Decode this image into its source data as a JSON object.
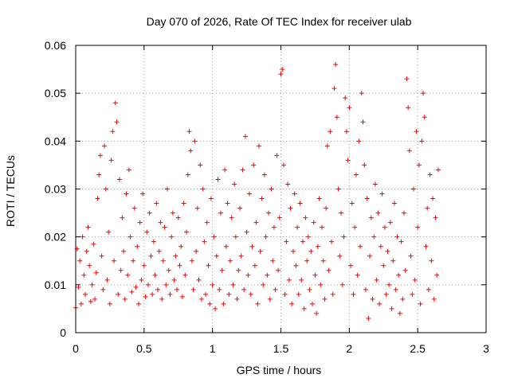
{
  "chart_data": {
    "type": "scatter",
    "title": "Day 070 of 2026, Rate Of TEC Index for receiver ulab",
    "xlabel": "GPS time / hours",
    "ylabel": "ROTI / TECUs",
    "xlim": [
      0,
      3
    ],
    "ylim": [
      0,
      0.06
    ],
    "xticks": [
      0,
      0.5,
      1,
      1.5,
      2,
      2.5,
      3
    ],
    "xtick_labels": [
      "0",
      "0.5",
      "1",
      "1.5",
      "2",
      "2.5",
      "3"
    ],
    "yticks": [
      0,
      0.01,
      0.02,
      0.03,
      0.04,
      0.05,
      0.06
    ],
    "ytick_labels": [
      "0",
      "0.01",
      "0.02",
      "0.03",
      "0.04",
      "0.05",
      "0.06"
    ],
    "grid": true,
    "marker": "plus",
    "marker_color": "#ff0000",
    "series": [
      {
        "points": [
          [
            0.0,
            0.0052
          ],
          [
            0.01,
            0.0175
          ],
          [
            0.02,
            0.0095
          ],
          [
            0.03,
            0.015
          ],
          [
            0.04,
            0.006
          ],
          [
            0.05,
            0.02
          ],
          [
            0.06,
            0.012
          ],
          [
            0.07,
            0.008
          ],
          [
            0.08,
            0.017
          ],
          [
            0.09,
            0.022
          ],
          [
            0.1,
            0.014
          ],
          [
            0.11,
            0.0065
          ],
          [
            0.12,
            0.01
          ],
          [
            0.13,
            0.0185
          ],
          [
            0.14,
            0.007
          ],
          [
            0.15,
            0.0125
          ],
          [
            0.16,
            0.028
          ],
          [
            0.17,
            0.033
          ],
          [
            0.18,
            0.037
          ],
          [
            0.19,
            0.016
          ],
          [
            0.2,
            0.009
          ],
          [
            0.21,
            0.039
          ],
          [
            0.22,
            0.03
          ],
          [
            0.23,
            0.011
          ],
          [
            0.24,
            0.021
          ],
          [
            0.25,
            0.006
          ],
          [
            0.26,
            0.036
          ],
          [
            0.27,
            0.042
          ],
          [
            0.28,
            0.015
          ],
          [
            0.29,
            0.048
          ],
          [
            0.3,
            0.044
          ],
          [
            0.31,
            0.008
          ],
          [
            0.32,
            0.032
          ],
          [
            0.33,
            0.013
          ],
          [
            0.34,
            0.024
          ],
          [
            0.35,
            0.017
          ],
          [
            0.36,
            0.007
          ],
          [
            0.37,
            0.029
          ],
          [
            0.38,
            0.012
          ],
          [
            0.39,
            0.034
          ],
          [
            0.4,
            0.02
          ],
          [
            0.41,
            0.0085
          ],
          [
            0.42,
            0.015
          ],
          [
            0.43,
            0.026
          ],
          [
            0.44,
            0.0095
          ],
          [
            0.45,
            0.018
          ],
          [
            0.46,
            0.006
          ],
          [
            0.47,
            0.023
          ],
          [
            0.48,
            0.011
          ],
          [
            0.49,
            0.029
          ],
          [
            0.5,
            0.014
          ],
          [
            0.51,
            0.0075
          ],
          [
            0.52,
            0.021
          ],
          [
            0.53,
            0.01
          ],
          [
            0.54,
            0.025
          ],
          [
            0.55,
            0.016
          ],
          [
            0.56,
            0.008
          ],
          [
            0.57,
            0.019
          ],
          [
            0.58,
            0.012
          ],
          [
            0.59,
            0.027
          ],
          [
            0.6,
            0.009
          ],
          [
            0.61,
            0.017
          ],
          [
            0.62,
            0.023
          ],
          [
            0.63,
            0.007
          ],
          [
            0.64,
            0.015
          ],
          [
            0.65,
            0.022
          ],
          [
            0.66,
            0.01
          ],
          [
            0.67,
            0.03
          ],
          [
            0.68,
            0.013
          ],
          [
            0.69,
            0.008
          ],
          [
            0.7,
            0.02
          ],
          [
            0.71,
            0.025
          ],
          [
            0.72,
            0.011
          ],
          [
            0.73,
            0.016
          ],
          [
            0.74,
            0.009
          ],
          [
            0.75,
            0.024
          ],
          [
            0.76,
            0.014
          ],
          [
            0.77,
            0.018
          ],
          [
            0.78,
            0.0075
          ],
          [
            0.79,
            0.027
          ],
          [
            0.8,
            0.012
          ],
          [
            0.81,
            0.021
          ],
          [
            0.82,
            0.033
          ],
          [
            0.83,
            0.042
          ],
          [
            0.84,
            0.038
          ],
          [
            0.85,
            0.015
          ],
          [
            0.86,
            0.009
          ],
          [
            0.87,
            0.04
          ],
          [
            0.88,
            0.017
          ],
          [
            0.89,
            0.026
          ],
          [
            0.9,
            0.011
          ],
          [
            0.91,
            0.035
          ],
          [
            0.92,
            0.007
          ],
          [
            0.93,
            0.03
          ],
          [
            0.94,
            0.019
          ],
          [
            0.95,
            0.008
          ],
          [
            0.96,
            0.023
          ],
          [
            0.97,
            0.014
          ],
          [
            0.98,
            0.006
          ],
          [
            0.99,
            0.028
          ],
          [
            1.0,
            0.01
          ],
          [
            1.01,
            0.02
          ],
          [
            1.02,
            0.005
          ],
          [
            1.03,
            0.016
          ],
          [
            1.04,
            0.032
          ],
          [
            1.05,
            0.009
          ],
          [
            1.06,
            0.025
          ],
          [
            1.07,
            0.013
          ],
          [
            1.08,
            0.006
          ],
          [
            1.09,
            0.034
          ],
          [
            1.1,
            0.018
          ],
          [
            1.11,
            0.027
          ],
          [
            1.12,
            0.008
          ],
          [
            1.13,
            0.015
          ],
          [
            1.14,
            0.024
          ],
          [
            1.15,
            0.01
          ],
          [
            1.16,
            0.031
          ],
          [
            1.17,
            0.02
          ],
          [
            1.18,
            0.007
          ],
          [
            1.19,
            0.013
          ],
          [
            1.2,
            0.026
          ],
          [
            1.21,
            0.016
          ],
          [
            1.22,
            0.034
          ],
          [
            1.23,
            0.009
          ],
          [
            1.24,
            0.041
          ],
          [
            1.25,
            0.021
          ],
          [
            1.26,
            0.012
          ],
          [
            1.27,
            0.029
          ],
          [
            1.28,
            0.008
          ],
          [
            1.29,
            0.018
          ],
          [
            1.3,
            0.035
          ],
          [
            1.31,
            0.014
          ],
          [
            1.32,
            0.023
          ],
          [
            1.33,
            0.006
          ],
          [
            1.34,
            0.039
          ],
          [
            1.35,
            0.017
          ],
          [
            1.36,
            0.028
          ],
          [
            1.37,
            0.01
          ],
          [
            1.38,
            0.033
          ],
          [
            1.39,
            0.02
          ],
          [
            1.4,
            0.012
          ],
          [
            1.41,
            0.025
          ],
          [
            1.42,
            0.007
          ],
          [
            1.43,
            0.03
          ],
          [
            1.44,
            0.015
          ],
          [
            1.45,
            0.022
          ],
          [
            1.46,
            0.009
          ],
          [
            1.47,
            0.037
          ],
          [
            1.48,
            0.013
          ],
          [
            1.49,
            0.024
          ],
          [
            1.5,
            0.054
          ],
          [
            1.51,
            0.055
          ],
          [
            1.52,
            0.035
          ],
          [
            1.53,
            0.008
          ],
          [
            1.54,
            0.019
          ],
          [
            1.55,
            0.031
          ],
          [
            1.56,
            0.011
          ],
          [
            1.57,
            0.026
          ],
          [
            1.58,
            0.006
          ],
          [
            1.59,
            0.017
          ],
          [
            1.6,
            0.029
          ],
          [
            1.61,
            0.014
          ],
          [
            1.62,
            0.022
          ],
          [
            1.63,
            0.008
          ],
          [
            1.64,
            0.027
          ],
          [
            1.65,
            0.011
          ],
          [
            1.66,
            0.019
          ],
          [
            1.67,
            0.005
          ],
          [
            1.68,
            0.024
          ],
          [
            1.69,
            0.015
          ],
          [
            1.7,
            0.02
          ],
          [
            1.71,
            0.009
          ],
          [
            1.72,
            0.017
          ],
          [
            1.73,
            0.006
          ],
          [
            1.74,
            0.023
          ],
          [
            1.75,
            0.012
          ],
          [
            1.76,
            0.004
          ],
          [
            1.77,
            0.018
          ],
          [
            1.78,
            0.028
          ],
          [
            1.79,
            0.01
          ],
          [
            1.8,
            0.022
          ],
          [
            1.81,
            0.015
          ],
          [
            1.82,
            0.007
          ],
          [
            1.83,
            0.026
          ],
          [
            1.84,
            0.039
          ],
          [
            1.85,
            0.013
          ],
          [
            1.86,
            0.042
          ],
          [
            1.87,
            0.019
          ],
          [
            1.88,
            0.008
          ],
          [
            1.89,
            0.051
          ],
          [
            1.9,
            0.056
          ],
          [
            1.91,
            0.045
          ],
          [
            1.92,
            0.03
          ],
          [
            1.93,
            0.016
          ],
          [
            1.94,
            0.025
          ],
          [
            1.95,
            0.01
          ],
          [
            1.96,
            0.02
          ],
          [
            1.97,
            0.049
          ],
          [
            1.98,
            0.042
          ],
          [
            1.99,
            0.036
          ],
          [
            2.0,
            0.047
          ],
          [
            2.01,
            0.014
          ],
          [
            2.02,
            0.027
          ],
          [
            2.03,
            0.008
          ],
          [
            2.04,
            0.022
          ],
          [
            2.05,
            0.033
          ],
          [
            2.06,
            0.012
          ],
          [
            2.07,
            0.04
          ],
          [
            2.08,
            0.018
          ],
          [
            2.09,
            0.05
          ],
          [
            2.1,
            0.044
          ],
          [
            2.11,
            0.035
          ],
          [
            2.12,
            0.009
          ],
          [
            2.13,
            0.028
          ],
          [
            2.14,
            0.003
          ],
          [
            2.15,
            0.016
          ],
          [
            2.16,
            0.024
          ],
          [
            2.17,
            0.007
          ],
          [
            2.18,
            0.02
          ],
          [
            2.19,
            0.031
          ],
          [
            2.2,
            0.011
          ],
          [
            2.21,
            0.025
          ],
          [
            2.22,
            0.006
          ],
          [
            2.23,
            0.018
          ],
          [
            2.24,
            0.029
          ],
          [
            2.25,
            0.014
          ],
          [
            2.26,
            0.022
          ],
          [
            2.27,
            0.008
          ],
          [
            2.28,
            0.017
          ],
          [
            2.29,
            0.01
          ],
          [
            2.3,
            0.023
          ],
          [
            2.31,
            0.005
          ],
          [
            2.32,
            0.015
          ],
          [
            2.33,
            0.027
          ],
          [
            2.34,
            0.009
          ],
          [
            2.35,
            0.02
          ],
          [
            2.36,
            0.012
          ],
          [
            2.37,
            0.004
          ],
          [
            2.38,
            0.019
          ],
          [
            2.39,
            0.007
          ],
          [
            2.4,
            0.025
          ],
          [
            2.41,
            0.013
          ],
          [
            2.42,
            0.053
          ],
          [
            2.43,
            0.047
          ],
          [
            2.44,
            0.038
          ],
          [
            2.45,
            0.016
          ],
          [
            2.46,
            0.008
          ],
          [
            2.47,
            0.03
          ],
          [
            2.48,
            0.011
          ],
          [
            2.49,
            0.042
          ],
          [
            2.5,
            0.022
          ],
          [
            2.51,
            0.035
          ],
          [
            2.52,
            0.006
          ],
          [
            2.53,
            0.04
          ],
          [
            2.54,
            0.05
          ],
          [
            2.55,
            0.045
          ],
          [
            2.56,
            0.018
          ],
          [
            2.57,
            0.026
          ],
          [
            2.58,
            0.009
          ],
          [
            2.59,
            0.033
          ],
          [
            2.6,
            0.015
          ],
          [
            2.61,
            0.028
          ],
          [
            2.62,
            0.007
          ],
          [
            2.63,
            0.024
          ],
          [
            2.64,
            0.012
          ],
          [
            2.65,
            0.034
          ]
        ]
      }
    ]
  }
}
